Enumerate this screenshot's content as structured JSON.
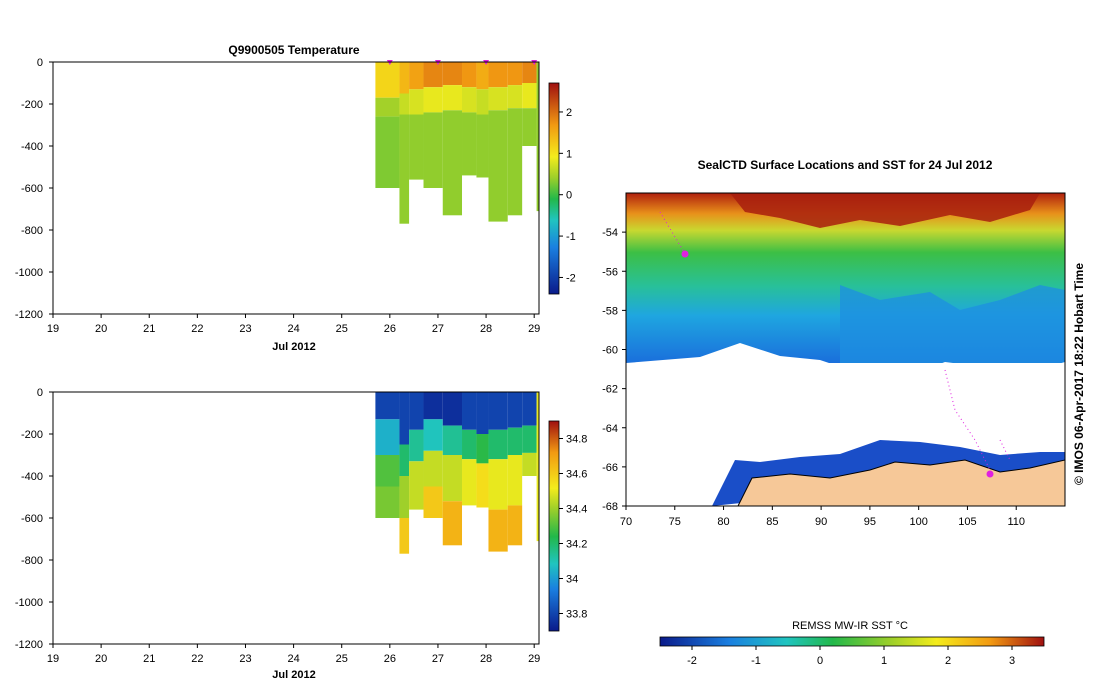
{
  "chart_data": [
    {
      "type": "heatmap",
      "title": "Q9900505  Temperature",
      "xlabel": "Jul 2012",
      "ylabel": "",
      "x_ticks": [
        "19",
        "20",
        "21",
        "22",
        "23",
        "24",
        "25",
        "26",
        "27",
        "28",
        "29"
      ],
      "xlim": [
        19,
        29.1
      ],
      "y_ticks": [
        "0",
        "-200",
        "-400",
        "-600",
        "-800",
        "-1000",
        "-1200"
      ],
      "ylim": [
        -1200,
        0
      ],
      "profile_markers_x": [
        26,
        27,
        28,
        29
      ],
      "profiles": [
        {
          "x0": 25.7,
          "x1": 26.2,
          "bottom": -600,
          "layers": [
            [
              0,
              -170,
              1.3
            ],
            [
              -170,
              -260,
              0.6
            ],
            [
              -260,
              -600,
              0.4
            ]
          ]
        },
        {
          "x0": 26.2,
          "x1": 26.4,
          "bottom": -770,
          "layers": [
            [
              0,
              -150,
              1.6
            ],
            [
              -150,
              -250,
              0.8
            ],
            [
              -250,
              -770,
              0.5
            ]
          ]
        },
        {
          "x0": 26.4,
          "x1": 26.7,
          "bottom": -560,
          "layers": [
            [
              0,
              -130,
              1.8
            ],
            [
              -130,
              -250,
              0.9
            ],
            [
              -250,
              -560,
              0.5
            ]
          ]
        },
        {
          "x0": 26.7,
          "x1": 27.1,
          "bottom": -600,
          "layers": [
            [
              0,
              -120,
              2.0
            ],
            [
              -120,
              -240,
              1.0
            ],
            [
              -240,
              -600,
              0.5
            ]
          ]
        },
        {
          "x0": 27.1,
          "x1": 27.5,
          "bottom": -730,
          "layers": [
            [
              0,
              -110,
              2.0
            ],
            [
              -110,
              -230,
              1.0
            ],
            [
              -230,
              -730,
              0.5
            ]
          ]
        },
        {
          "x0": 27.5,
          "x1": 27.8,
          "bottom": -540,
          "layers": [
            [
              0,
              -120,
              1.9
            ],
            [
              -120,
              -240,
              0.9
            ],
            [
              -240,
              -540,
              0.5
            ]
          ]
        },
        {
          "x0": 27.8,
          "x1": 28.05,
          "bottom": -550,
          "layers": [
            [
              0,
              -130,
              1.7
            ],
            [
              -130,
              -250,
              0.8
            ],
            [
              -250,
              -550,
              0.5
            ]
          ]
        },
        {
          "x0": 28.05,
          "x1": 28.45,
          "bottom": -760,
          "layers": [
            [
              0,
              -120,
              1.9
            ],
            [
              -120,
              -230,
              0.9
            ],
            [
              -230,
              -760,
              0.5
            ]
          ]
        },
        {
          "x0": 28.45,
          "x1": 28.75,
          "bottom": -730,
          "layers": [
            [
              0,
              -110,
              1.9
            ],
            [
              -110,
              -220,
              0.9
            ],
            [
              -220,
              -730,
              0.5
            ]
          ]
        },
        {
          "x0": 28.75,
          "x1": 29.05,
          "bottom": -400,
          "layers": [
            [
              0,
              -100,
              2.0
            ],
            [
              -100,
              -220,
              1.0
            ],
            [
              -220,
              -400,
              0.5
            ]
          ]
        },
        {
          "x0": 29.05,
          "x1": 29.1,
          "bottom": -710,
          "layers": [
            [
              0,
              -710,
              0.5
            ]
          ]
        }
      ],
      "colorbar": {
        "ticks": [
          "2",
          "1",
          "0",
          "-1",
          "-2"
        ],
        "range": [
          -2.4,
          2.7
        ]
      }
    },
    {
      "type": "heatmap",
      "title": "",
      "xlabel": "Jul 2012",
      "ylabel": "",
      "x_ticks": [
        "19",
        "20",
        "21",
        "22",
        "23",
        "24",
        "25",
        "26",
        "27",
        "28",
        "29"
      ],
      "xlim": [
        19,
        29.1
      ],
      "y_ticks": [
        "0",
        "-200",
        "-400",
        "-600",
        "-800",
        "-1000",
        "-1200"
      ],
      "ylim": [
        -1200,
        0
      ],
      "profiles": [
        {
          "x0": 25.7,
          "x1": 26.2,
          "bottom": -600,
          "layers": [
            [
              0,
              -130,
              33.8
            ],
            [
              -130,
              -300,
              34.05
            ],
            [
              -300,
              -450,
              34.3
            ],
            [
              -450,
              -600,
              34.35
            ]
          ]
        },
        {
          "x0": 26.2,
          "x1": 26.4,
          "bottom": -770,
          "layers": [
            [
              0,
              -250,
              33.8
            ],
            [
              -250,
              -400,
              34.2
            ],
            [
              -400,
              -600,
              34.4
            ],
            [
              -600,
              -770,
              34.6
            ]
          ]
        },
        {
          "x0": 26.4,
          "x1": 26.7,
          "bottom": -560,
          "layers": [
            [
              0,
              -180,
              33.8
            ],
            [
              -180,
              -330,
              34.15
            ],
            [
              -330,
              -560,
              34.45
            ]
          ]
        },
        {
          "x0": 26.7,
          "x1": 27.1,
          "bottom": -600,
          "layers": [
            [
              0,
              -130,
              33.75
            ],
            [
              -130,
              -280,
              34.1
            ],
            [
              -280,
              -450,
              34.45
            ],
            [
              -450,
              -600,
              34.6
            ]
          ]
        },
        {
          "x0": 27.1,
          "x1": 27.5,
          "bottom": -730,
          "layers": [
            [
              0,
              -160,
              33.75
            ],
            [
              -160,
              -300,
              34.15
            ],
            [
              -300,
              -520,
              34.45
            ],
            [
              -520,
              -730,
              34.65
            ]
          ]
        },
        {
          "x0": 27.5,
          "x1": 27.8,
          "bottom": -540,
          "layers": [
            [
              0,
              -180,
              33.8
            ],
            [
              -180,
              -320,
              34.2
            ],
            [
              -320,
              -540,
              34.5
            ]
          ]
        },
        {
          "x0": 27.8,
          "x1": 28.05,
          "bottom": -550,
          "layers": [
            [
              0,
              -200,
              33.8
            ],
            [
              -200,
              -340,
              34.25
            ],
            [
              -340,
              -550,
              34.55
            ]
          ]
        },
        {
          "x0": 28.05,
          "x1": 28.45,
          "bottom": -760,
          "layers": [
            [
              0,
              -180,
              33.8
            ],
            [
              -180,
              -320,
              34.2
            ],
            [
              -320,
              -560,
              34.5
            ],
            [
              -560,
              -760,
              34.65
            ]
          ]
        },
        {
          "x0": 28.45,
          "x1": 28.75,
          "bottom": -730,
          "layers": [
            [
              0,
              -170,
              33.8
            ],
            [
              -170,
              -300,
              34.2
            ],
            [
              -300,
              -540,
              34.5
            ],
            [
              -540,
              -730,
              34.65
            ]
          ]
        },
        {
          "x0": 28.75,
          "x1": 29.05,
          "bottom": -400,
          "layers": [
            [
              0,
              -160,
              33.8
            ],
            [
              -160,
              -290,
              34.2
            ],
            [
              -290,
              -400,
              34.45
            ]
          ]
        },
        {
          "x0": 29.05,
          "x1": 29.1,
          "bottom": -710,
          "layers": [
            [
              0,
              -710,
              34.5
            ]
          ]
        }
      ],
      "colorbar": {
        "ticks": [
          "34.8",
          "34.6",
          "34.4",
          "34.2",
          "34",
          "33.8"
        ],
        "range": [
          33.7,
          34.9
        ]
      }
    },
    {
      "type": "heatmap",
      "title": "SealCTD Surface Locations and SST for 24 Jul 2012",
      "xlabel": "",
      "ylabel": "",
      "x_ticks": [
        "70",
        "75",
        "80",
        "85",
        "90",
        "95",
        "100",
        "105",
        "110"
      ],
      "xlim": [
        70,
        115
      ],
      "y_ticks": [
        "-54",
        "-56",
        "-58",
        "-60",
        "-62",
        "-64",
        "-66",
        "-68"
      ],
      "ylim": [
        -68,
        -52
      ],
      "side_label": "© IMOS 06-Apr-2017 18:22 Hobart Time",
      "colorbar": {
        "label": "REMSS MW-IR SST °C",
        "ticks": [
          "-2",
          "-1",
          "0",
          "1",
          "2",
          "3"
        ],
        "range": [
          -2.5,
          3.5
        ]
      }
    }
  ]
}
